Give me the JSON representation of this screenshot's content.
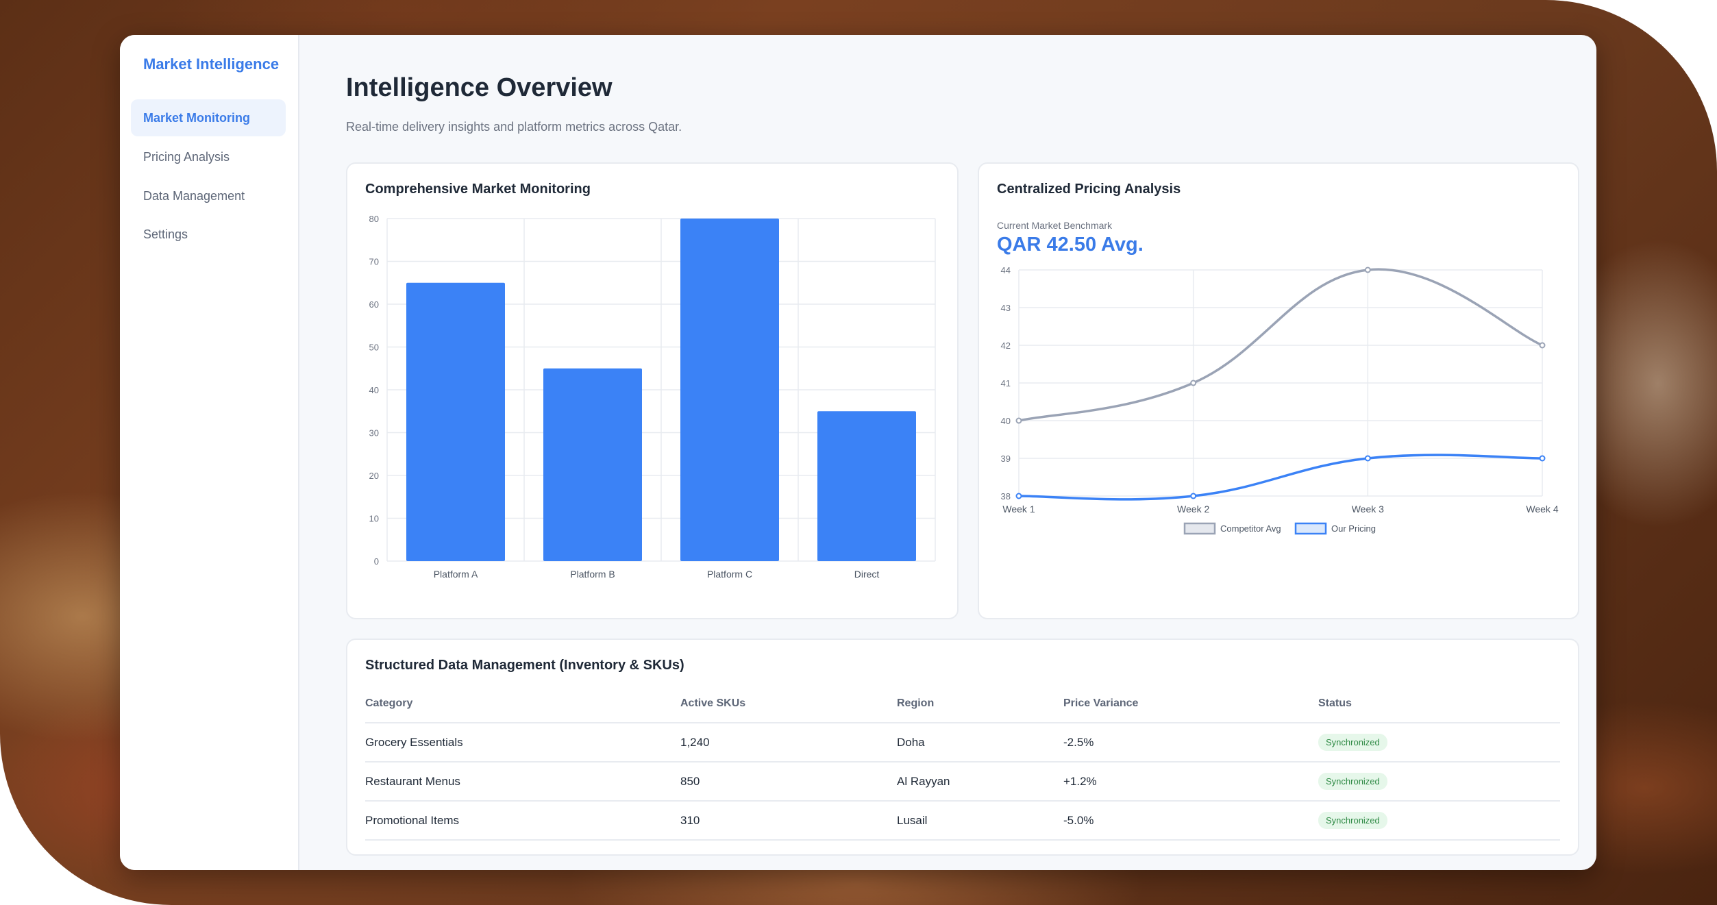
{
  "sidebar": {
    "brand": "Market Intelligence",
    "items": [
      {
        "label": "Market Monitoring",
        "active": true
      },
      {
        "label": "Pricing Analysis",
        "active": false
      },
      {
        "label": "Data Management",
        "active": false
      },
      {
        "label": "Settings",
        "active": false
      }
    ]
  },
  "header": {
    "title": "Intelligence Overview",
    "subtitle": "Real-time delivery insights and platform metrics across Qatar."
  },
  "monitoring_card": {
    "title": "Comprehensive Market Monitoring"
  },
  "pricing_card": {
    "title": "Centralized Pricing Analysis",
    "benchmark_label": "Current Market Benchmark",
    "benchmark_value": "QAR 42.50 Avg."
  },
  "table_card": {
    "title": "Structured Data Management (Inventory & SKUs)",
    "columns": [
      "Category",
      "Active SKUs",
      "Region",
      "Price Variance",
      "Status"
    ],
    "rows": [
      [
        "Grocery Essentials",
        "1,240",
        "Doha",
        "-2.5%",
        "Synchronized"
      ],
      [
        "Restaurant Menus",
        "850",
        "Al Rayyan",
        "+1.2%",
        "Synchronized"
      ],
      [
        "Promotional Items",
        "310",
        "Lusail",
        "-5.0%",
        "Synchronized"
      ]
    ]
  },
  "colors": {
    "accent": "#3b82f6",
    "competitor": "#9aa3b5",
    "status_bg": "#e6f7ea",
    "status_text": "#2f8a45"
  },
  "chart_data": [
    {
      "type": "bar",
      "categories": [
        "Platform A",
        "Platform B",
        "Platform C",
        "Direct"
      ],
      "values": [
        65,
        45,
        80,
        35
      ],
      "ylim": [
        0,
        80
      ],
      "yticks": [
        0,
        10,
        20,
        30,
        40,
        50,
        60,
        70,
        80
      ],
      "grid": true
    },
    {
      "type": "line",
      "x": [
        "Week 1",
        "Week 2",
        "Week 3",
        "Week 4"
      ],
      "series": [
        {
          "name": "Competitor Avg",
          "values": [
            40,
            41,
            44,
            42
          ]
        },
        {
          "name": "Our Pricing",
          "values": [
            38,
            38,
            39,
            39
          ]
        }
      ],
      "ylim": [
        38,
        44
      ],
      "yticks": [
        38,
        39,
        40,
        41,
        42,
        43,
        44
      ],
      "grid": true,
      "legend": "bottom-center"
    }
  ]
}
